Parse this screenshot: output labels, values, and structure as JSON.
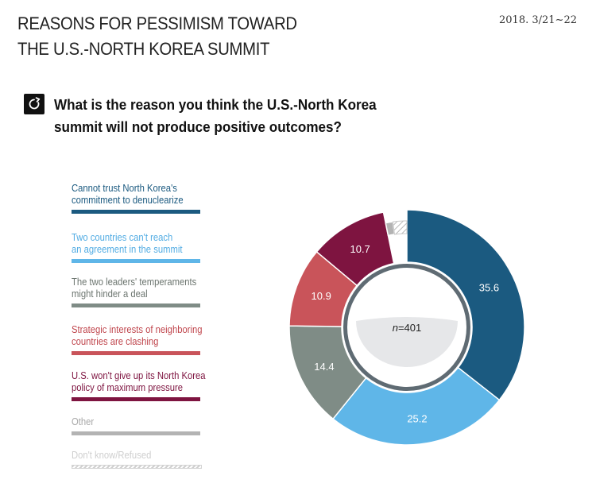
{
  "header": {
    "title_line1": "REASONS FOR PESSIMISM TOWARD",
    "title_line2": "THE U.S.-NORTH KOREA SUMMIT",
    "date": "2018. 3/21~22"
  },
  "question": {
    "icon": "refresh-icon",
    "line1": "What is the reason you think the U.S.-North Korea",
    "line2": "summit will not produce positive outcomes?"
  },
  "chart_data": {
    "type": "pie",
    "subtype": "donut",
    "center_label": {
      "italic": "n",
      "text": "=401"
    },
    "start_angle_deg": 0,
    "direction": "clockwise",
    "slices": [
      {
        "name": "Cannot trust North Korea's\ncommitment to denuclearize",
        "line1": "Cannot trust North Korea's",
        "line2": "commitment to denuclearize",
        "value": 35.6,
        "label": "35.6",
        "color": "#1b5a80",
        "label_color": "#1b5a80",
        "pattern": "solid"
      },
      {
        "name": "Two countries can't reach\nan agreement in the summit",
        "line1": "Two countries can't reach",
        "line2": "an agreement in the summit",
        "value": 25.2,
        "label": "25.2",
        "color": "#5fb6e8",
        "label_color": "#52ace3",
        "pattern": "solid"
      },
      {
        "name": "The two leaders' temperaments\nmight hinder a deal",
        "line1": "The two leaders' temperaments",
        "line2": "might hinder a deal",
        "value": 14.4,
        "label": "14.4",
        "color": "#7f8c86",
        "label_color": "#6c756f",
        "pattern": "solid"
      },
      {
        "name": "Strategic interests of neighboring\ncountries are clashing",
        "line1": "Strategic interests of neighboring",
        "line2": "countries are clashing",
        "value": 10.9,
        "label": "10.9",
        "color": "#c9545a",
        "label_color": "#c0464d",
        "pattern": "solid"
      },
      {
        "name": "U.S. won't give up its North Korea\npolicy of maximum pressure",
        "line1": "U.S. won't give up its North Korea",
        "line2": "policy of maximum pressure",
        "value": 10.7,
        "label": "10.7",
        "color": "#7e1440",
        "label_color": "#7e1440",
        "pattern": "solid"
      },
      {
        "name": "Other",
        "line1": "Other",
        "line2": "",
        "value": 1.1,
        "label": "",
        "color": "#b3b3b3",
        "label_color": "#a8a8a8",
        "pattern": "solid"
      },
      {
        "name": "Don't know/Refused",
        "line1": "Don't know/Refused",
        "line2": "",
        "value": 2.1,
        "label": "",
        "color": "#d0d0d0",
        "label_color": "#cfcfcf",
        "pattern": "hatched"
      }
    ]
  }
}
